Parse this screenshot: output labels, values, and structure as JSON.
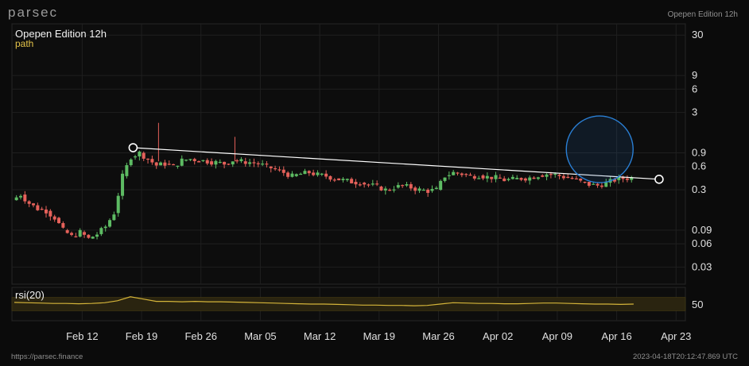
{
  "app": {
    "brand": "parsec",
    "header_label": "Opepen Edition 12h",
    "url": "https://parsec.finance",
    "timestamp": "2023-04-18T20:12:47.869 UTC"
  },
  "chart_data": {
    "type": "candlestick",
    "title": "Opepen Edition 12h",
    "subtitle": "path",
    "y_scale": "log",
    "ylim": [
      0.018,
      42
    ],
    "y_ticks": [
      30,
      9,
      6,
      3,
      0.9,
      0.6,
      0.3,
      0.09,
      0.06,
      0.03
    ],
    "y_tick_labels": [
      "30",
      "9",
      "6",
      "3",
      "0.9",
      "0.6",
      "0.3",
      "0.09",
      "0.06",
      "0.03"
    ],
    "x_ticks": [
      "Feb 12",
      "Feb 19",
      "Feb 26",
      "Mar 05",
      "Mar 12",
      "Mar 19",
      "Mar 26",
      "Apr 02",
      "Apr 09",
      "Apr 16",
      "Apr 23"
    ],
    "x_start": "2023-02-04",
    "grid": true,
    "series": [
      {
        "type": "candles",
        "up_color": "#5dbb63",
        "down_color": "#e5615a",
        "points": [
          {
            "date": "2023-02-04",
            "close": 0.22
          },
          {
            "date": "2023-02-05",
            "close": 0.26
          },
          {
            "date": "2023-02-06",
            "close": 0.2
          },
          {
            "date": "2023-02-07",
            "close": 0.17
          },
          {
            "date": "2023-02-08",
            "close": 0.16
          },
          {
            "date": "2023-02-09",
            "close": 0.13
          },
          {
            "date": "2023-02-10",
            "close": 0.09
          },
          {
            "date": "2023-02-11",
            "close": 0.075
          },
          {
            "date": "2023-02-12",
            "close": 0.085
          },
          {
            "date": "2023-02-13",
            "close": 0.07
          },
          {
            "date": "2023-02-14",
            "close": 0.08
          },
          {
            "date": "2023-02-15",
            "close": 0.1
          },
          {
            "date": "2023-02-16",
            "close": 0.15
          },
          {
            "date": "2023-02-17",
            "close": 0.45
          },
          {
            "date": "2023-02-18",
            "close": 0.8
          },
          {
            "date": "2023-02-19",
            "close": 0.9
          },
          {
            "date": "2023-02-20",
            "close": 0.75
          },
          {
            "date": "2023-02-21",
            "close": 0.62
          },
          {
            "date": "2023-02-22",
            "close": 0.65
          },
          {
            "date": "2023-02-23",
            "close": 0.6
          },
          {
            "date": "2023-02-24",
            "close": 0.72
          },
          {
            "date": "2023-02-25",
            "close": 0.75
          },
          {
            "date": "2023-02-26",
            "close": 0.72
          },
          {
            "date": "2023-02-27",
            "close": 0.7
          },
          {
            "date": "2023-02-28",
            "close": 0.68
          },
          {
            "date": "2023-03-01",
            "close": 0.65
          },
          {
            "date": "2023-03-02",
            "close": 0.72
          },
          {
            "date": "2023-03-03",
            "close": 0.7
          },
          {
            "date": "2023-03-04",
            "close": 0.68
          },
          {
            "date": "2023-03-05",
            "close": 0.65
          },
          {
            "date": "2023-03-06",
            "close": 0.6
          },
          {
            "date": "2023-03-07",
            "close": 0.55
          },
          {
            "date": "2023-03-08",
            "close": 0.5
          },
          {
            "date": "2023-03-09",
            "close": 0.45
          },
          {
            "date": "2023-03-10",
            "close": 0.48
          },
          {
            "date": "2023-03-11",
            "close": 0.5
          },
          {
            "date": "2023-03-12",
            "close": 0.47
          },
          {
            "date": "2023-03-13",
            "close": 0.45
          },
          {
            "date": "2023-03-14",
            "close": 0.42
          },
          {
            "date": "2023-03-15",
            "close": 0.4
          },
          {
            "date": "2023-03-16",
            "close": 0.38
          },
          {
            "date": "2023-03-17",
            "close": 0.37
          },
          {
            "date": "2023-03-18",
            "close": 0.35
          },
          {
            "date": "2023-03-19",
            "close": 0.33
          },
          {
            "date": "2023-03-20",
            "close": 0.3
          },
          {
            "date": "2023-03-21",
            "close": 0.32
          },
          {
            "date": "2023-03-22",
            "close": 0.34
          },
          {
            "date": "2023-03-23",
            "close": 0.32
          },
          {
            "date": "2023-03-24",
            "close": 0.3
          },
          {
            "date": "2023-03-25",
            "close": 0.29
          },
          {
            "date": "2023-03-26",
            "close": 0.3
          },
          {
            "date": "2023-03-27",
            "close": 0.45
          },
          {
            "date": "2023-03-28",
            "close": 0.5
          },
          {
            "date": "2023-03-29",
            "close": 0.48
          },
          {
            "date": "2023-03-30",
            "close": 0.45
          },
          {
            "date": "2023-03-31",
            "close": 0.46
          },
          {
            "date": "2023-04-01",
            "close": 0.44
          },
          {
            "date": "2023-04-02",
            "close": 0.43
          },
          {
            "date": "2023-04-03",
            "close": 0.4
          },
          {
            "date": "2023-04-04",
            "close": 0.41
          },
          {
            "date": "2023-04-05",
            "close": 0.42
          },
          {
            "date": "2023-04-06",
            "close": 0.43
          },
          {
            "date": "2023-04-07",
            "close": 0.46
          },
          {
            "date": "2023-04-08",
            "close": 0.48
          },
          {
            "date": "2023-04-09",
            "close": 0.47
          },
          {
            "date": "2023-04-10",
            "close": 0.44
          },
          {
            "date": "2023-04-11",
            "close": 0.42
          },
          {
            "date": "2023-04-12",
            "close": 0.38
          },
          {
            "date": "2023-04-13",
            "close": 0.35
          },
          {
            "date": "2023-04-14",
            "close": 0.34
          },
          {
            "date": "2023-04-15",
            "close": 0.37
          },
          {
            "date": "2023-04-16",
            "close": 0.4
          },
          {
            "date": "2023-04-17",
            "close": 0.42
          },
          {
            "date": "2023-04-18",
            "close": 0.43
          }
        ]
      },
      {
        "type": "trendline",
        "color": "#ffffff",
        "points": [
          {
            "date": "2023-02-18",
            "value": 1.05
          },
          {
            "date": "2023-04-21",
            "value": 0.41
          }
        ]
      },
      {
        "type": "highlight-circle",
        "color": "#2a7fd4",
        "center": {
          "date": "2023-04-14",
          "value": 1.0
        }
      }
    ],
    "rsi": {
      "title": "rsi(20)",
      "ylim": [
        0,
        100
      ],
      "y_ticks": [
        50
      ],
      "y_tick_labels": [
        "50"
      ],
      "band": [
        30,
        70
      ],
      "line_color": "#d4b43a",
      "values": [
        55,
        54,
        53,
        52,
        52,
        51,
        52,
        54,
        60,
        72,
        65,
        58,
        58,
        57,
        58,
        57,
        57,
        56,
        55,
        54,
        53,
        52,
        51,
        50,
        50,
        49,
        48,
        47,
        47,
        46,
        46,
        45,
        46,
        50,
        54,
        53,
        52,
        52,
        51,
        51,
        52,
        53,
        53,
        52,
        51,
        50,
        50,
        49,
        50
      ]
    }
  }
}
